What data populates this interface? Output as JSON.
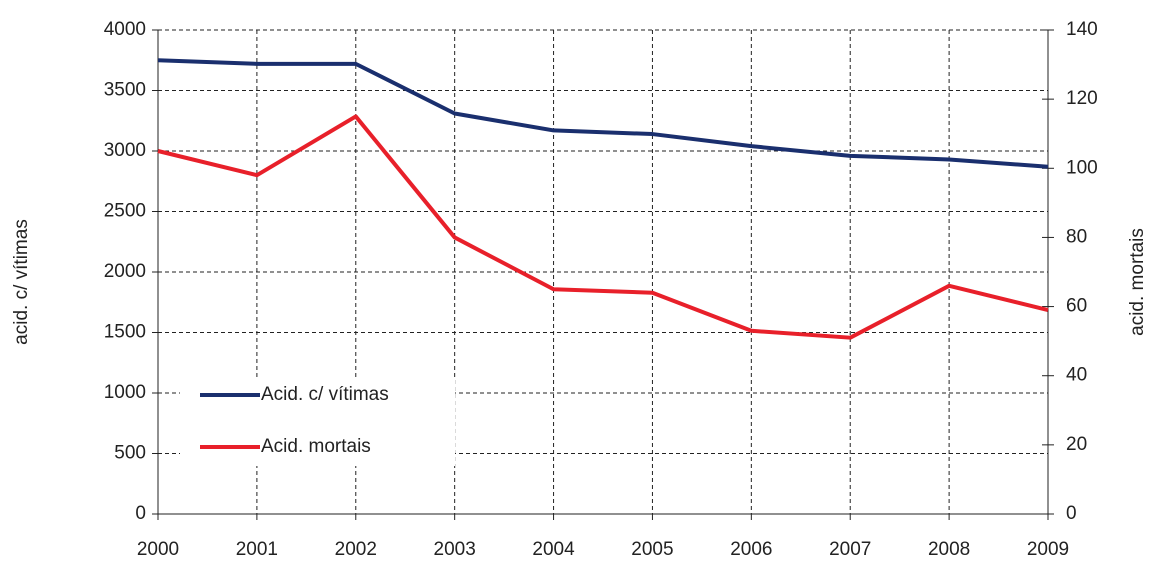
{
  "chart_data": {
    "type": "line",
    "x": [
      2000,
      2001,
      2002,
      2003,
      2004,
      2005,
      2006,
      2007,
      2008,
      2009
    ],
    "xlim": [
      2000,
      2009
    ],
    "xticks": [
      2000,
      2001,
      2002,
      2003,
      2004,
      2005,
      2006,
      2007,
      2008,
      2009
    ],
    "ylabel": "acid. c/ vítimas",
    "y2label": "acid. mortais",
    "ylim": [
      0,
      4000
    ],
    "yticks": [
      0,
      500,
      1000,
      1500,
      2000,
      2500,
      3000,
      3500,
      4000
    ],
    "y2lim": [
      0,
      140
    ],
    "y2ticks": [
      0,
      20,
      40,
      60,
      80,
      100,
      120,
      140
    ],
    "grid": true,
    "legend": "lower left",
    "series": [
      {
        "name": "Acid. c/ vítimas",
        "color": "#1a2f6e",
        "values": [
          3750,
          3720,
          3720,
          3310,
          3170,
          3140,
          3040,
          2960,
          2930,
          2870
        ]
      },
      {
        "name": "Acid. mortais",
        "color": "#e8202a",
        "axis": "y2",
        "values": [
          105,
          98,
          115,
          80,
          65,
          64,
          53,
          51,
          66,
          59
        ]
      }
    ]
  }
}
